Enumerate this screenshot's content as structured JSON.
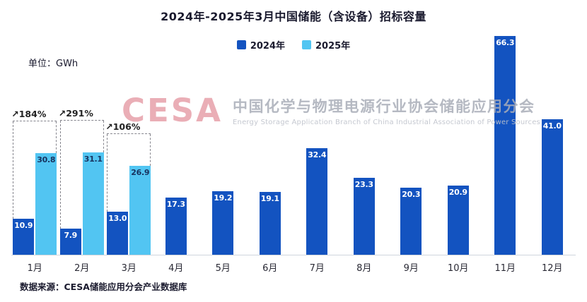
{
  "title": "2024年-2025年3月中国储能（含设备）招标容量",
  "unit_label": "单位：GWh",
  "legend": [
    {
      "label": "2024年",
      "color": "#1353c0"
    },
    {
      "label": "2025年",
      "color": "#52c5f2"
    }
  ],
  "watermark": {
    "logo": "CESA",
    "cn": "中国化学与物理电源行业协会储能应用分会",
    "en": "Energy Storage Application Branch of China Industrial Association of Power Sources"
  },
  "source": "数据来源：CESA储能应用分会产业数据库",
  "chart_data": {
    "type": "bar",
    "categories": [
      "1月",
      "2月",
      "3月",
      "4月",
      "5月",
      "6月",
      "7月",
      "8月",
      "9月",
      "10月",
      "11月",
      "12月"
    ],
    "series": [
      {
        "name": "2024年",
        "color": "#1353c0",
        "label_color": "#ffffff",
        "values": [
          10.9,
          7.9,
          13.0,
          17.3,
          19.2,
          19.1,
          32.4,
          23.3,
          20.3,
          20.9,
          66.3,
          41.0
        ],
        "labels": [
          "10.9",
          "7.9",
          "13.0",
          "17.3",
          "19.2",
          "19.1",
          "32.4",
          "23.3",
          "20.3",
          "20.9",
          "66.3",
          "41.0"
        ]
      },
      {
        "name": "2025年",
        "color": "#52c5f2",
        "label_color": "#17325e",
        "values": [
          30.8,
          31.1,
          26.9,
          null,
          null,
          null,
          null,
          null,
          null,
          null,
          null,
          null
        ],
        "labels": [
          "30.8",
          "31.1",
          "26.9"
        ]
      }
    ],
    "annotations": [
      {
        "month_index": 0,
        "label": "↗184%"
      },
      {
        "month_index": 1,
        "label": "↗291%"
      },
      {
        "month_index": 2,
        "label": "↗106%"
      }
    ],
    "ylabel": "GWh",
    "ymax": 66.3,
    "grid": false,
    "legend_position": "top"
  }
}
